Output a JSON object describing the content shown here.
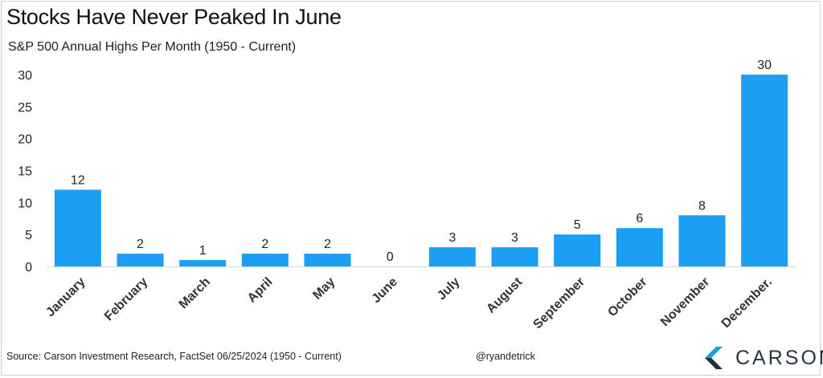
{
  "header": {
    "title": "Stocks Have Never Peaked In June",
    "subtitle": "S&P 500 Annual Highs Per Month (1950 - Current)"
  },
  "footer": {
    "source": "Source: Carson Investment Research, FactSet 06/25/2024 (1950 - Current)",
    "handle": "@ryandetrick",
    "brand": "CARSON"
  },
  "colors": {
    "bar": "#1a9ff2",
    "axis": "#d9d9d9",
    "brand_mark_dark": "#1f2d3d",
    "brand_mark_light": "#1aa0e0"
  },
  "chart_data": {
    "type": "bar",
    "title": "Stocks Have Never Peaked In June",
    "subtitle": "S&P 500 Annual Highs Per Month (1950 - Current)",
    "categories": [
      "January",
      "February",
      "March",
      "April",
      "May",
      "June",
      "July",
      "August",
      "September",
      "October",
      "November",
      "December."
    ],
    "values": [
      12,
      2,
      1,
      2,
      2,
      0,
      3,
      3,
      5,
      6,
      8,
      30
    ],
    "data_labels": [
      "12",
      "2",
      "1",
      "2",
      "2",
      "0",
      "3",
      "3",
      "5",
      "6",
      "8",
      "30"
    ],
    "xlabel": "",
    "ylabel": "",
    "ylim": [
      0,
      30
    ],
    "yticks": [
      0,
      5,
      10,
      15,
      20,
      25,
      30
    ],
    "grid": false,
    "legend": "none"
  }
}
